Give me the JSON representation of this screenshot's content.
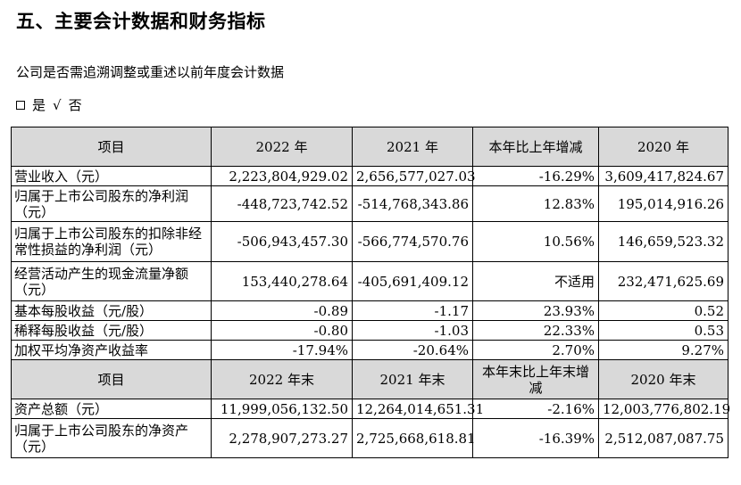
{
  "title": "五、主要会计数据和财务指标",
  "subtitle": "公司是否需追溯调整或重述以前年度会计数据",
  "choice": {
    "yes": "是",
    "check": "√",
    "no": "否"
  },
  "table": {
    "header1": [
      "项目",
      "2022 年",
      "2021 年",
      "本年比上年增减",
      "2020 年"
    ],
    "rows1": [
      [
        "营业收入（元）",
        "2,223,804,929.02",
        "2,656,577,027.03",
        "-16.29%",
        "3,609,417,824.67"
      ],
      [
        "归属于上市公司股东的净利润（元）",
        "-448,723,742.52",
        "-514,768,343.86",
        "12.83%",
        "195,014,916.26"
      ],
      [
        "归属于上市公司股东的扣除非经常性损益的净利润（元）",
        "-506,943,457.30",
        "-566,774,570.76",
        "10.56%",
        "146,659,523.32"
      ],
      [
        "经营活动产生的现金流量净额（元）",
        "153,440,278.64",
        "-405,691,409.12",
        "不适用",
        "232,471,625.69"
      ],
      [
        "基本每股收益（元/股）",
        "-0.89",
        "-1.17",
        "23.93%",
        "0.52"
      ],
      [
        "稀释每股收益（元/股）",
        "-0.80",
        "-1.03",
        "22.33%",
        "0.53"
      ],
      [
        "加权平均净资产收益率",
        "-17.94%",
        "-20.64%",
        "2.70%",
        "9.27%"
      ]
    ],
    "header2": [
      "项目",
      "2022 年末",
      "2021 年末",
      "本年末比上年末增减",
      "2020 年末"
    ],
    "rows2": [
      [
        "资产总额（元）",
        "11,999,056,132.50",
        "12,264,014,651.31",
        "-2.16%",
        "12,003,776,802.19"
      ],
      [
        "归属于上市公司股东的净资产（元）",
        "2,278,907,273.27",
        "2,725,668,618.81",
        "-16.39%",
        "2,512,087,087.75"
      ]
    ]
  }
}
